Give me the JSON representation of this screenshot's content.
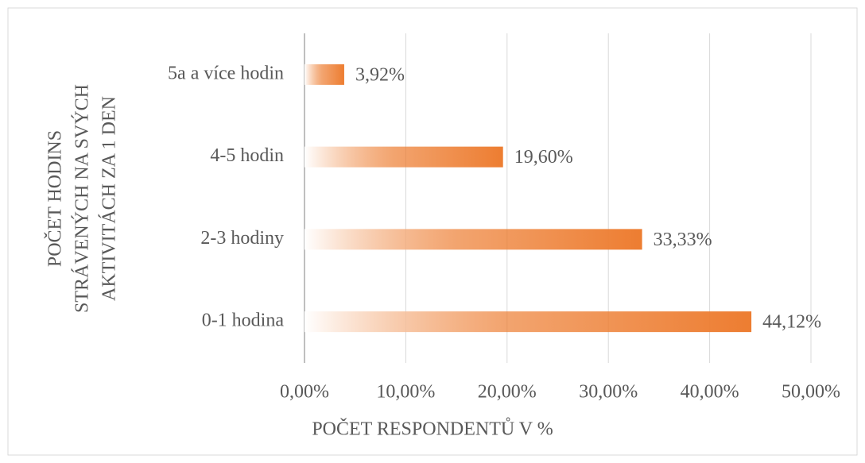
{
  "chart_data": {
    "type": "bar",
    "orientation": "horizontal",
    "ylabel": [
      "POČET HODINS",
      "STRÁVENÝCH NA SVÝCH",
      "AKTIVITÁCH ZA 1 DEN"
    ],
    "xlabel": "POČET RESPONDENTŮ V %",
    "categories": [
      "0-1 hodina",
      "2-3 hodiny",
      "4-5 hodin",
      "5a a více hodin"
    ],
    "values": [
      44.12,
      33.33,
      19.6,
      3.92
    ],
    "value_labels": [
      "44,12%",
      "33,33%",
      "19,60%",
      "3,92%"
    ],
    "color": "#ed7d31",
    "xlim": [
      0,
      50
    ],
    "xticks": [
      {
        "value": 0,
        "label": "0,00%"
      },
      {
        "value": 10,
        "label": "10,00%"
      },
      {
        "value": 20,
        "label": "20,00%"
      },
      {
        "value": 30,
        "label": "30,00%"
      },
      {
        "value": 40,
        "label": "40,00%"
      },
      {
        "value": 50,
        "label": "50,00%"
      }
    ],
    "grid": true
  }
}
